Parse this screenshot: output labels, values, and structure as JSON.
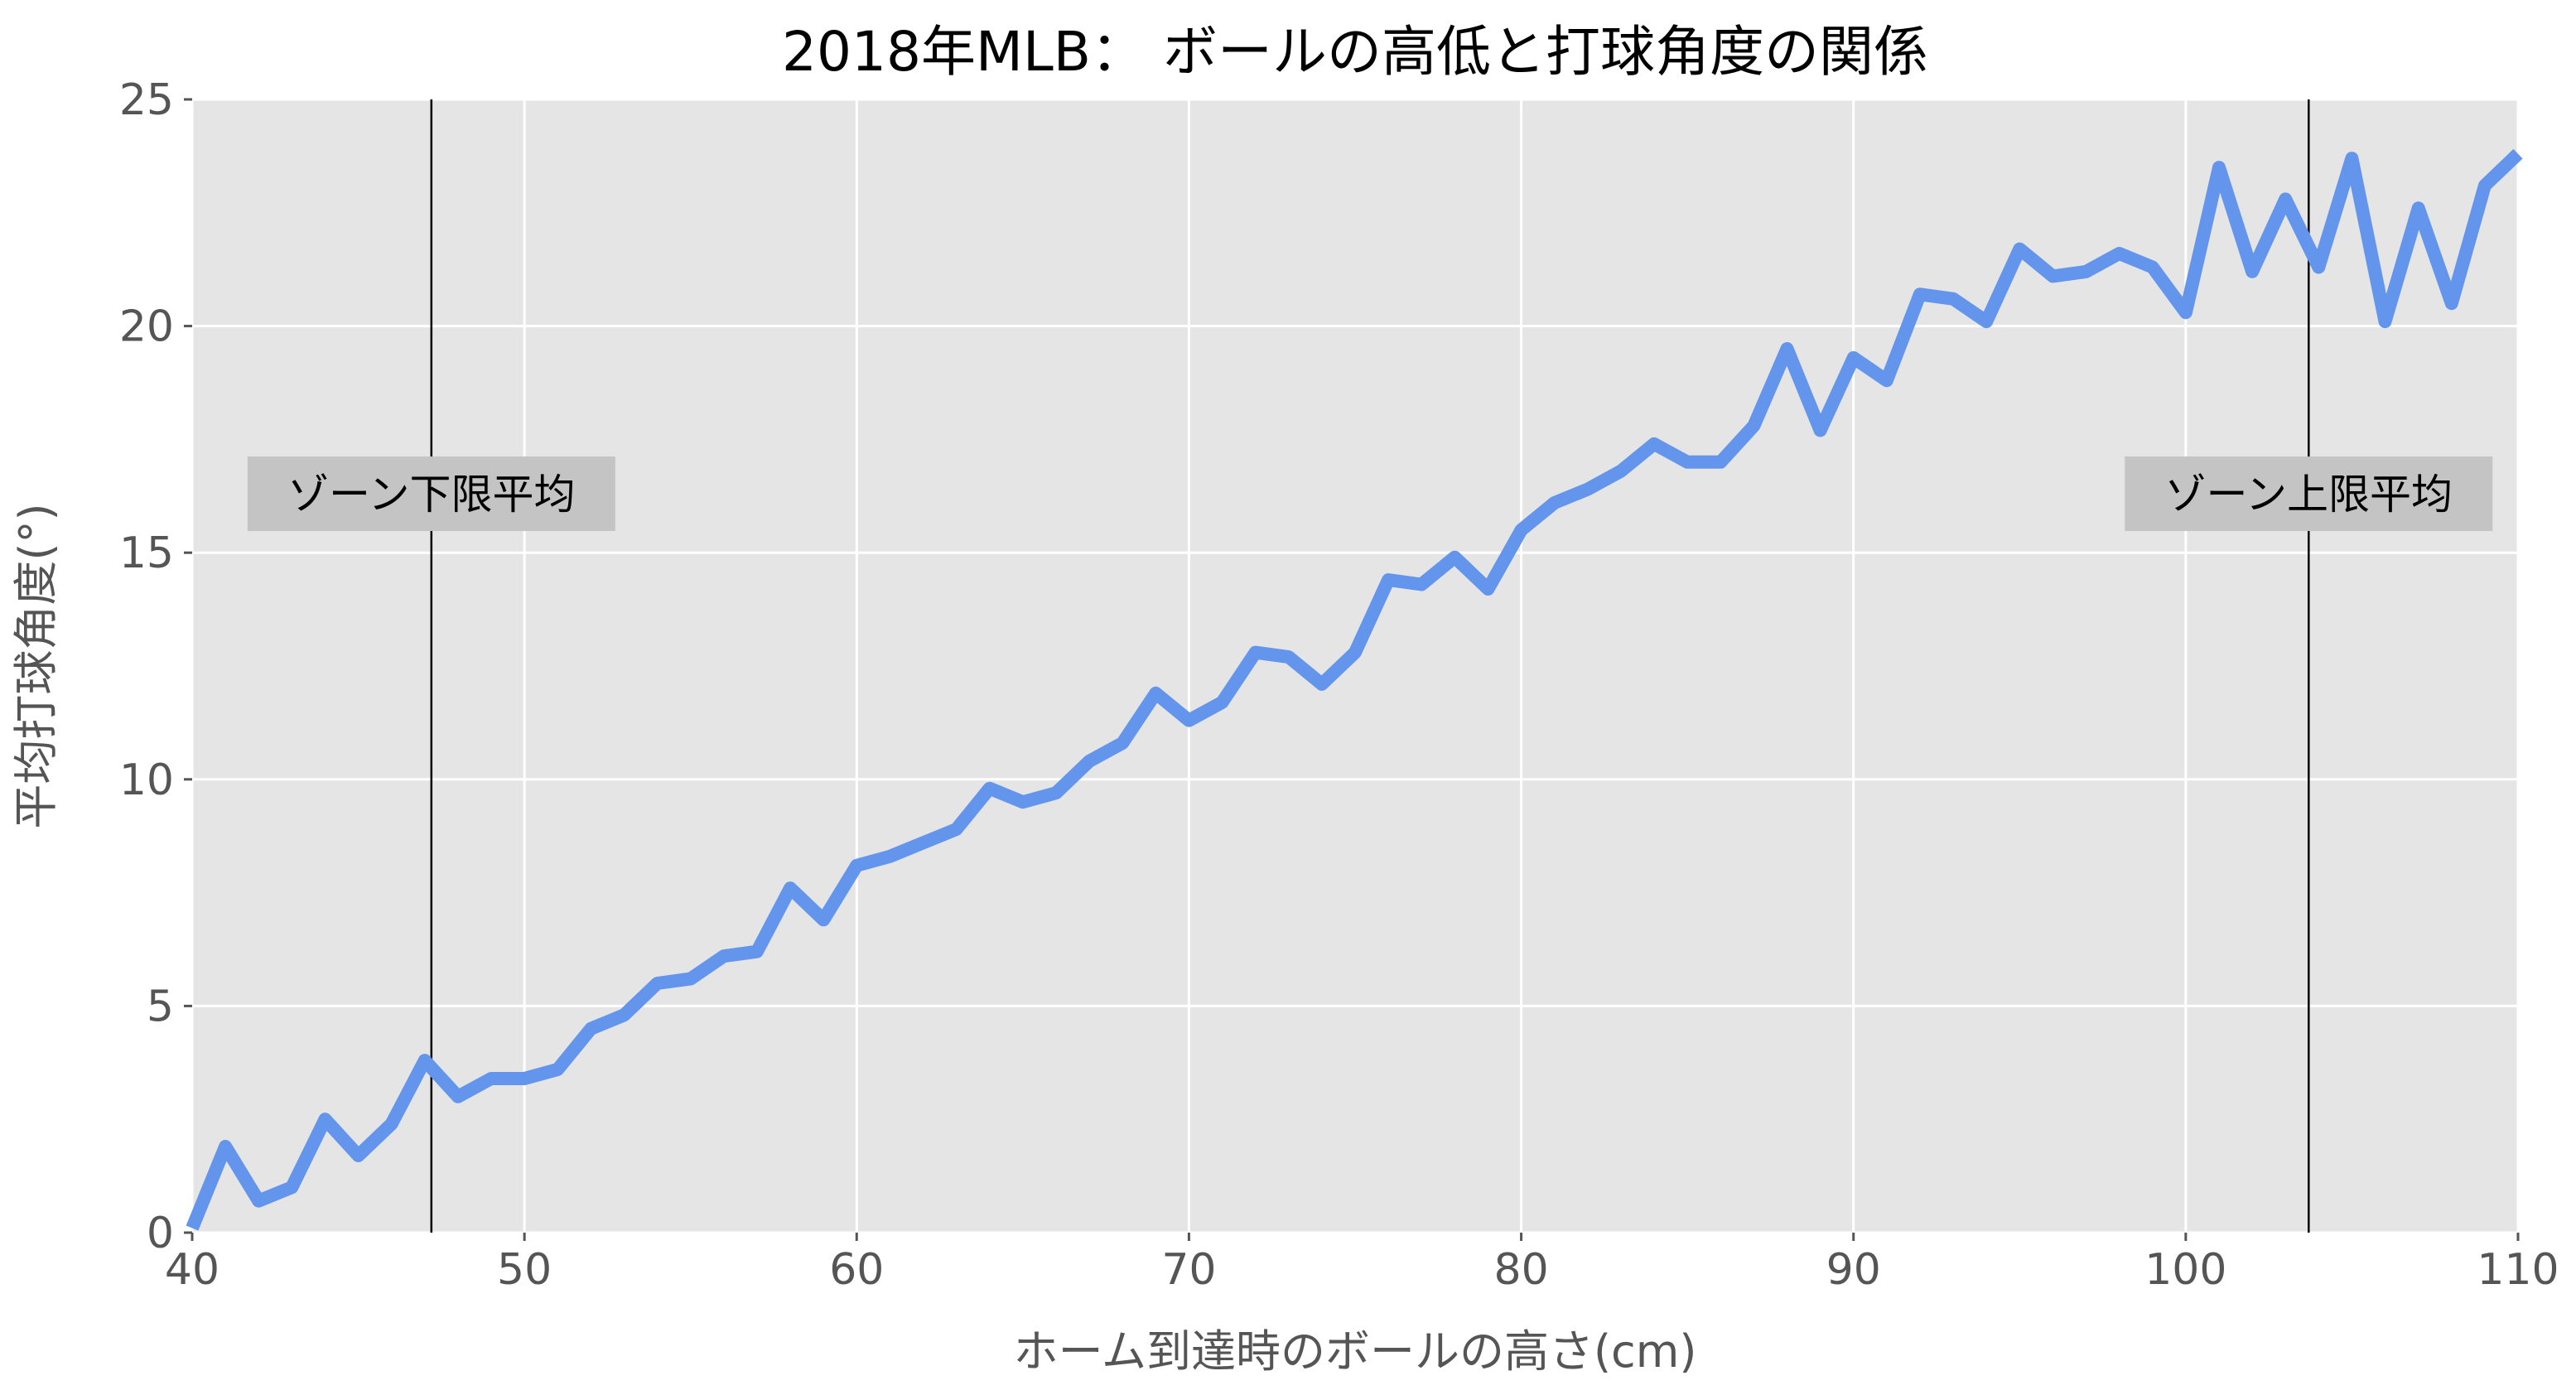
{
  "colors": {
    "plot_background": "#e5e5e5",
    "grid": "#ffffff",
    "line": "#6495ed",
    "tick_text": "#555555",
    "annotation_box": "#c4c4c4",
    "zone_line": "#000000"
  },
  "chart_data": {
    "type": "line",
    "title": "2018年MLB： ボールの高低と打球角度の関係",
    "xlabel": "ホーム到達時のボールの高さ(cm)",
    "ylabel": "平均打球角度(°)",
    "xlim": [
      40,
      110
    ],
    "ylim": [
      0,
      25
    ],
    "grid": true,
    "x_ticks": [
      "40",
      "50",
      "60",
      "70",
      "80",
      "90",
      "100",
      "110"
    ],
    "y_ticks": [
      "0",
      "5",
      "10",
      "15",
      "20",
      "25"
    ],
    "series": [
      {
        "x": [
          40,
          41,
          42,
          43,
          44,
          45,
          46,
          47,
          48,
          49,
          50,
          51,
          52,
          53,
          54,
          55,
          56,
          57,
          58,
          59,
          60,
          61,
          62,
          63,
          64,
          65,
          66,
          67,
          68,
          69,
          70,
          71,
          72,
          73,
          74,
          75,
          76,
          77,
          78,
          79,
          80,
          81,
          82,
          83,
          84,
          85,
          86,
          87,
          88,
          89,
          90,
          91,
          92,
          93,
          94,
          95,
          96,
          97,
          98,
          99,
          100,
          101,
          102,
          103,
          104,
          105,
          106,
          107,
          108,
          109,
          110
        ],
        "values": [
          0.1,
          1.9,
          0.7,
          1.0,
          2.5,
          1.7,
          2.4,
          3.8,
          3.0,
          3.4,
          3.4,
          3.6,
          4.5,
          4.8,
          5.5,
          5.6,
          6.1,
          6.2,
          7.6,
          6.9,
          8.1,
          8.3,
          8.6,
          8.9,
          9.8,
          9.5,
          9.7,
          10.4,
          10.8,
          11.9,
          11.3,
          11.7,
          12.8,
          12.7,
          12.1,
          12.8,
          14.4,
          14.3,
          14.9,
          14.2,
          15.5,
          16.1,
          16.4,
          16.8,
          17.4,
          17.0,
          17.0,
          17.8,
          19.5,
          17.7,
          19.3,
          18.8,
          20.7,
          20.6,
          20.1,
          21.7,
          21.1,
          21.2,
          21.6,
          21.3,
          20.3,
          23.5,
          21.2,
          22.8,
          21.3,
          23.7,
          20.1,
          22.6,
          20.5,
          23.1,
          23.8
        ]
      }
    ],
    "vlines": [
      {
        "x": 47.2,
        "label": "ゾーン下限平均"
      },
      {
        "x": 103.7,
        "label": "ゾーン上限平均"
      }
    ]
  }
}
